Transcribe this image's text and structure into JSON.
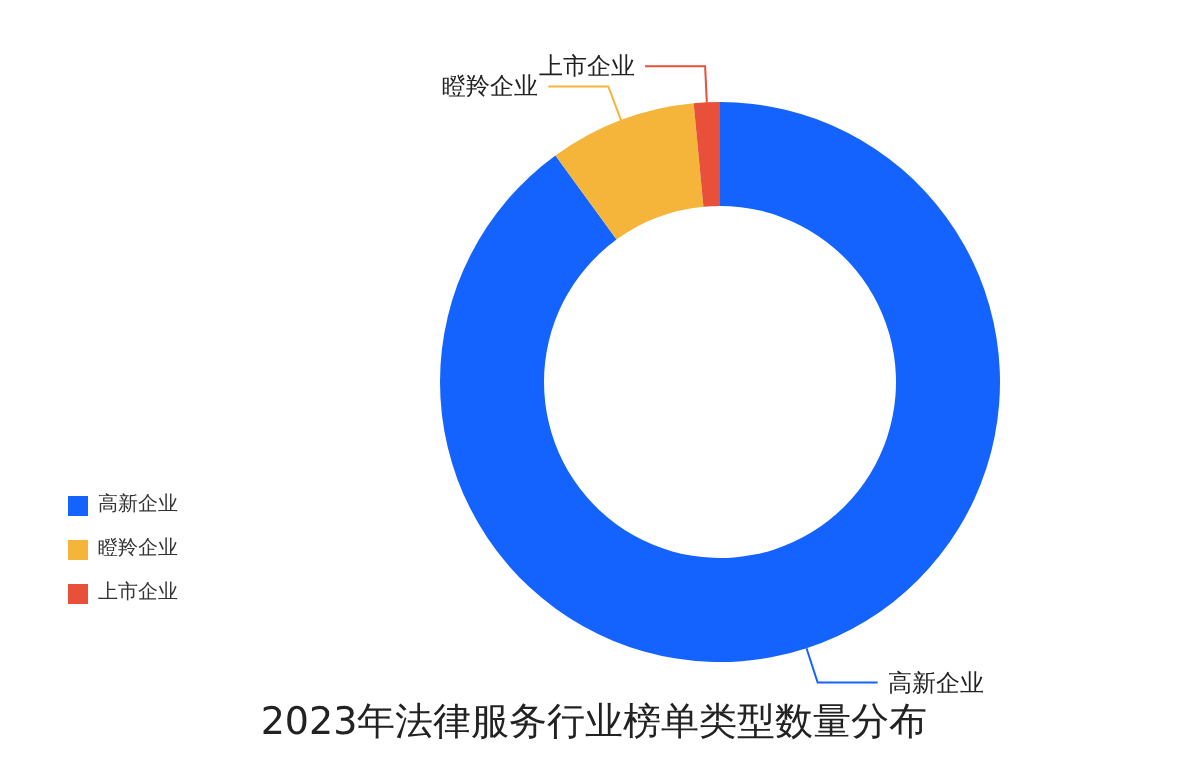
{
  "chart_data": {
    "type": "donut",
    "title": "2023年法律服务行业榜单类型数量分布",
    "categories": [
      "高新企业",
      "瞪羚企业",
      "上市企业"
    ],
    "values": [
      90,
      8.5,
      1.5
    ],
    "colors": [
      "#1463ff",
      "#f5b53a",
      "#e8503a"
    ],
    "legend": "bottom left"
  }
}
